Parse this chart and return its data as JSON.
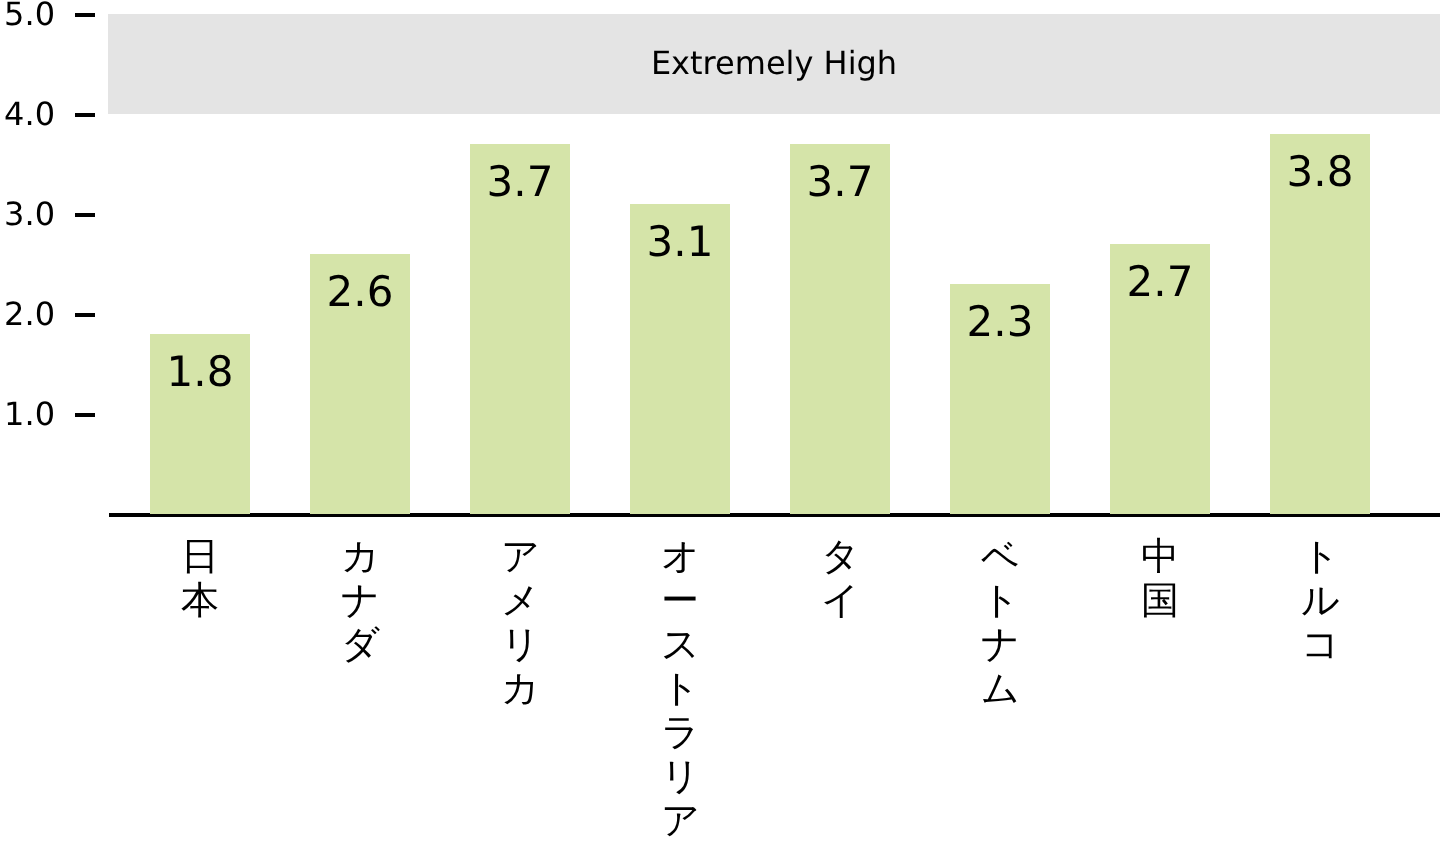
{
  "chart_data": {
    "type": "bar",
    "categories": [
      "日本",
      "カナダ",
      "アメリカ",
      "オーストラリア",
      "タイ",
      "ベトナム",
      "中国",
      "トルコ"
    ],
    "values": [
      1.8,
      2.6,
      3.7,
      3.1,
      3.7,
      2.3,
      2.7,
      3.8
    ],
    "color": "#d5e4a9",
    "ylim": [
      0,
      5
    ],
    "yticks": [
      {
        "value": 1,
        "label": "1.0"
      },
      {
        "value": 2,
        "label": "2.0"
      },
      {
        "value": 3,
        "label": "3.0"
      },
      {
        "value": 4,
        "label": "4.0"
      },
      {
        "value": 5,
        "label": "5.0"
      }
    ],
    "data_labels": true,
    "bands": [
      {
        "axis": "y",
        "from": 4,
        "to": 5,
        "label": "Extremely High",
        "color": "#e4e4e4"
      }
    ]
  }
}
